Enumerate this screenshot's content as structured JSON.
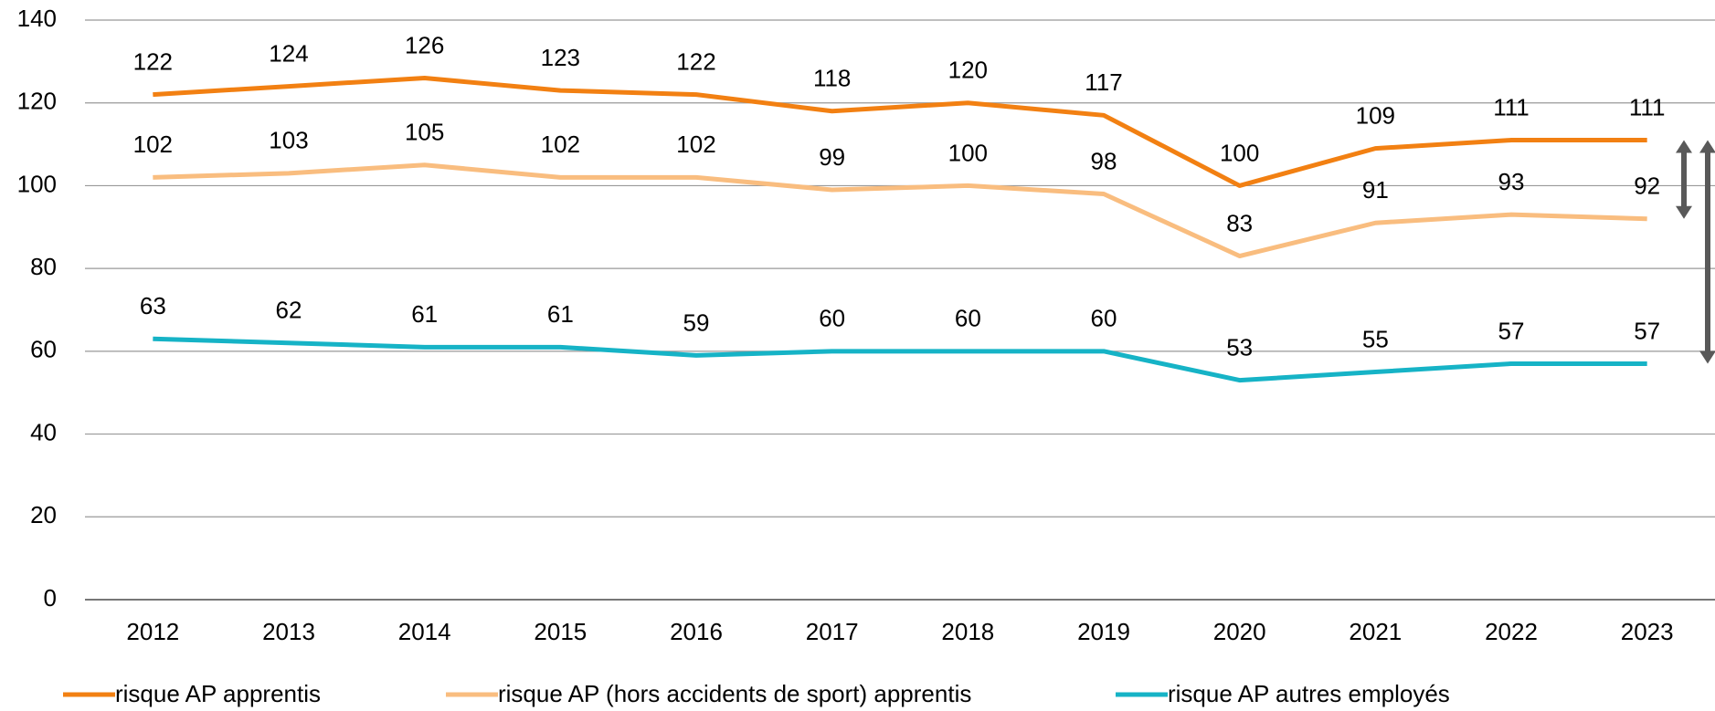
{
  "chart_data": {
    "type": "line",
    "categories": [
      "2012",
      "2013",
      "2014",
      "2015",
      "2016",
      "2017",
      "2018",
      "2019",
      "2020",
      "2021",
      "2022",
      "2023"
    ],
    "series": [
      {
        "name": "risque AP apprentis",
        "color": "#f28012",
        "values": [
          122,
          124,
          126,
          123,
          122,
          118,
          120,
          117,
          100,
          109,
          111,
          111
        ]
      },
      {
        "name": "risque AP (hors accidents de sport) apprentis",
        "color": "#f9bd7f",
        "values": [
          102,
          103,
          105,
          102,
          102,
          99,
          100,
          98,
          83,
          91,
          93,
          92
        ]
      },
      {
        "name": "risque AP autres employés",
        "color": "#16b3c6",
        "values": [
          63,
          62,
          61,
          61,
          59,
          60,
          60,
          60,
          53,
          55,
          57,
          57
        ]
      }
    ],
    "ylim": [
      0,
      140
    ],
    "yticks": [
      0,
      20,
      40,
      60,
      80,
      100,
      120,
      140
    ],
    "grid": true,
    "legend": "bottom"
  }
}
